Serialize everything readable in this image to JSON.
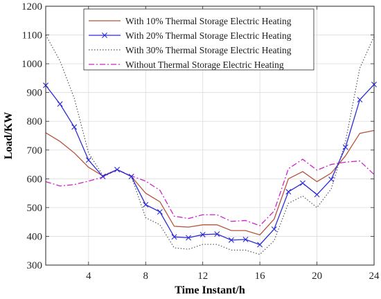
{
  "chart_data": {
    "type": "line",
    "xlabel": "Time Instant/h",
    "ylabel": "Load/KW",
    "xlim": [
      1,
      24
    ],
    "ylim": [
      300,
      1200
    ],
    "xticks": [
      4,
      8,
      12,
      16,
      20,
      24
    ],
    "yticks": [
      300,
      400,
      500,
      600,
      700,
      800,
      900,
      1000,
      1100,
      1200
    ],
    "xtick_labels": [
      "4",
      "8",
      "12",
      "16",
      "20",
      "24"
    ],
    "ytick_labels": [
      "300",
      "400",
      "500",
      "600",
      "700",
      "800",
      "900",
      "1000",
      "1100",
      "1200"
    ],
    "grid": true,
    "legend_position": "top-right",
    "x": [
      1,
      2,
      3,
      4,
      5,
      6,
      7,
      8,
      9,
      10,
      11,
      12,
      13,
      14,
      15,
      16,
      17,
      18,
      19,
      20,
      21,
      22,
      23,
      24
    ],
    "series": [
      {
        "name": "With 10% Thermal Storage Electric Heating",
        "color": "#b5533c",
        "style": "solid",
        "marker": "none",
        "values": [
          760,
          730,
          690,
          640,
          610,
          632,
          608,
          550,
          520,
          435,
          432,
          440,
          440,
          420,
          420,
          405,
          460,
          600,
          625,
          590,
          620,
          680,
          758,
          768
        ]
      },
      {
        "name": "With 20% Thermal Storage Electric Heating",
        "color": "#2a2ad6",
        "style": "solid",
        "marker": "x",
        "values": [
          925,
          860,
          780,
          665,
          608,
          632,
          608,
          510,
          485,
          398,
          395,
          406,
          408,
          387,
          389,
          371,
          425,
          555,
          585,
          545,
          598,
          710,
          875,
          928
        ]
      },
      {
        "name": "With 30% Thermal Storage Electric Heating",
        "color": "#555555",
        "style": "dotted",
        "marker": "none",
        "values": [
          1100,
          1010,
          880,
          690,
          612,
          632,
          608,
          465,
          440,
          360,
          355,
          372,
          372,
          352,
          352,
          337,
          385,
          515,
          540,
          500,
          565,
          730,
          985,
          1095
        ]
      },
      {
        "name": "Without Thermal Storage Electric Heating",
        "color": "#cc22cc",
        "style": "dashdot",
        "marker": "none",
        "values": [
          590,
          575,
          580,
          592,
          606,
          632,
          610,
          592,
          560,
          470,
          462,
          475,
          475,
          452,
          455,
          437,
          488,
          635,
          668,
          630,
          650,
          658,
          662,
          615
        ]
      }
    ]
  }
}
